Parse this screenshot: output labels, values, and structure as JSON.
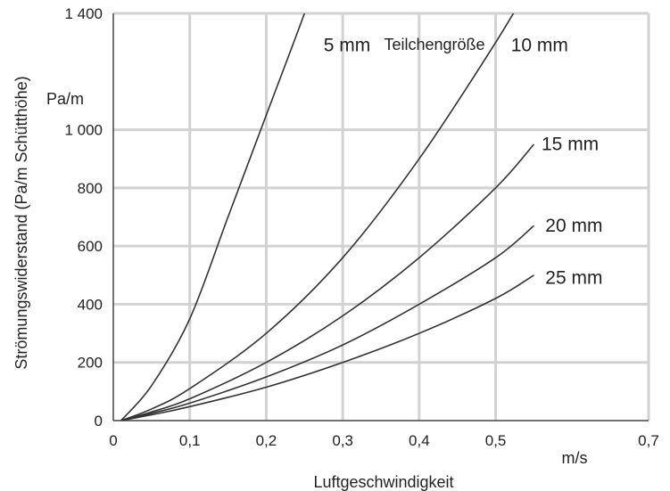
{
  "chart_data": {
    "type": "line",
    "title": "",
    "xlabel": "Luftgeschwindigkeit",
    "ylabel": "Strömungswiderstand (Pa/m Schütthöhe)",
    "x_unit": "m/s",
    "y_unit": "Pa/m",
    "xlim": [
      0,
      0.7
    ],
    "ylim": [
      0,
      1400
    ],
    "x_ticks": [
      0,
      0.1,
      0.2,
      0.3,
      0.4,
      0.5,
      0.7
    ],
    "x_tick_labels": [
      "0",
      "0,1",
      "0,2",
      "0,3",
      "0,4",
      "0,5",
      "0,7"
    ],
    "y_ticks": [
      0,
      200,
      400,
      600,
      800,
      1000,
      1400
    ],
    "y_tick_labels": [
      "0",
      "200",
      "400",
      "600",
      "800",
      "1 000",
      "1 400"
    ],
    "grid": true,
    "legend_title": "Teilchengröße",
    "series": [
      {
        "name": "5 mm",
        "label_at": [
          0.275,
          1270
        ],
        "x": [
          0.01,
          0.05,
          0.1,
          0.15,
          0.2,
          0.25,
          0.27
        ],
        "y": [
          0,
          120,
          350,
          700,
          1050,
          1400,
          1560
        ]
      },
      {
        "name": "10 mm",
        "label_at": [
          0.52,
          1270
        ],
        "x": [
          0.01,
          0.05,
          0.1,
          0.2,
          0.3,
          0.4,
          0.5,
          0.545
        ],
        "y": [
          0,
          40,
          110,
          300,
          560,
          900,
          1300,
          1500
        ]
      },
      {
        "name": "15 mm",
        "label_at": [
          0.56,
          930
        ],
        "x": [
          0.01,
          0.05,
          0.1,
          0.2,
          0.3,
          0.4,
          0.5,
          0.55
        ],
        "y": [
          0,
          30,
          75,
          200,
          360,
          560,
          800,
          950
        ]
      },
      {
        "name": "20 mm",
        "label_at": [
          0.565,
          650
        ],
        "x": [
          0.01,
          0.05,
          0.1,
          0.2,
          0.3,
          0.4,
          0.5,
          0.55
        ],
        "y": [
          0,
          25,
          60,
          150,
          260,
          400,
          560,
          670
        ]
      },
      {
        "name": "25 mm",
        "label_at": [
          0.565,
          470
        ],
        "x": [
          0.01,
          0.05,
          0.1,
          0.2,
          0.3,
          0.4,
          0.5,
          0.55
        ],
        "y": [
          0,
          20,
          48,
          115,
          200,
          300,
          420,
          500
        ]
      }
    ]
  }
}
